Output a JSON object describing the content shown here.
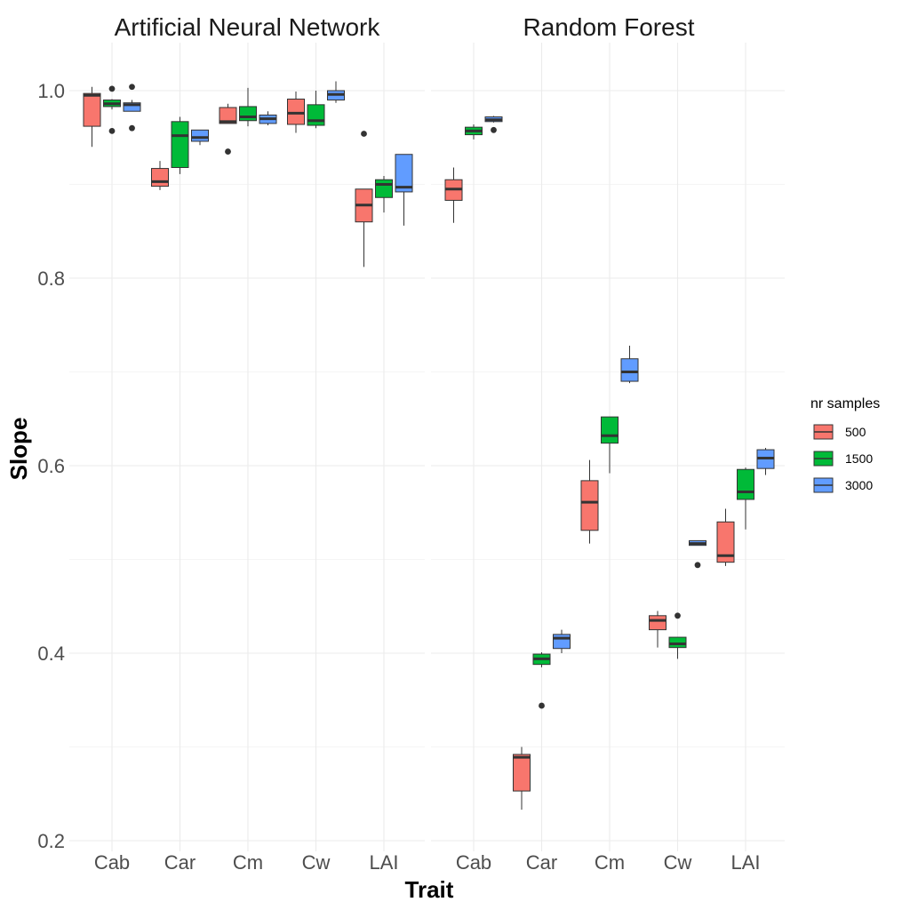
{
  "chart_data": {
    "type": "boxplot",
    "panels": [
      "Artificial Neural Network",
      "Random Forest"
    ],
    "categories": [
      "Cab",
      "Car",
      "Cm",
      "Cw",
      "LAI"
    ],
    "xlabel": "Trait",
    "ylabel": "Slope",
    "ylim": [
      0.2,
      1.05
    ],
    "yticks": [
      "0.2",
      "0.4",
      "0.6",
      "0.8",
      "1.0"
    ],
    "legend": {
      "title": "nr samples",
      "position": "right",
      "entries": [
        "500",
        "1500",
        "3000"
      ],
      "colors": [
        "#F8766D",
        "#00BA38",
        "#619CFF"
      ]
    },
    "series": [
      {
        "name": "500",
        "panels": [
          [
            {
              "min": 0.94,
              "q1": 0.962,
              "median": 0.995,
              "q3": 0.997,
              "max": 1.004,
              "outliers": []
            },
            {
              "min": 0.894,
              "q1": 0.898,
              "median": 0.903,
              "q3": 0.917,
              "max": 0.925,
              "outliers": []
            },
            {
              "min": 0.965,
              "q1": 0.965,
              "median": 0.967,
              "q3": 0.982,
              "max": 0.986,
              "outliers": [
                0.935
              ]
            },
            {
              "min": 0.955,
              "q1": 0.964,
              "median": 0.976,
              "q3": 0.991,
              "max": 0.999,
              "outliers": []
            },
            {
              "min": 0.812,
              "q1": 0.86,
              "median": 0.878,
              "q3": 0.895,
              "max": 0.895,
              "outliers": [
                0.954
              ]
            }
          ],
          [
            {
              "min": 0.859,
              "q1": 0.883,
              "median": 0.895,
              "q3": 0.905,
              "max": 0.918,
              "outliers": []
            },
            {
              "min": 0.233,
              "q1": 0.253,
              "median": 0.289,
              "q3": 0.292,
              "max": 0.3,
              "outliers": []
            },
            {
              "min": 0.517,
              "q1": 0.531,
              "median": 0.561,
              "q3": 0.584,
              "max": 0.606,
              "outliers": []
            },
            {
              "min": 0.406,
              "q1": 0.425,
              "median": 0.435,
              "q3": 0.44,
              "max": 0.445,
              "outliers": []
            },
            {
              "min": 0.493,
              "q1": 0.497,
              "median": 0.504,
              "q3": 0.54,
              "max": 0.554,
              "outliers": []
            }
          ]
        ]
      },
      {
        "name": "1500",
        "panels": [
          [
            {
              "min": 0.98,
              "q1": 0.983,
              "median": 0.986,
              "q3": 0.99,
              "max": 0.991,
              "outliers": [
                0.957,
                1.002
              ]
            },
            {
              "min": 0.911,
              "q1": 0.918,
              "median": 0.952,
              "q3": 0.967,
              "max": 0.972,
              "outliers": []
            },
            {
              "min": 0.962,
              "q1": 0.968,
              "median": 0.972,
              "q3": 0.983,
              "max": 1.003,
              "outliers": []
            },
            {
              "min": 0.96,
              "q1": 0.963,
              "median": 0.968,
              "q3": 0.985,
              "max": 1.0,
              "outliers": []
            },
            {
              "min": 0.87,
              "q1": 0.886,
              "median": 0.9,
              "q3": 0.905,
              "max": 0.909,
              "outliers": []
            }
          ],
          [
            {
              "min": 0.948,
              "q1": 0.953,
              "median": 0.957,
              "q3": 0.961,
              "max": 0.964,
              "outliers": []
            },
            {
              "min": 0.385,
              "q1": 0.388,
              "median": 0.394,
              "q3": 0.399,
              "max": 0.401,
              "outliers": [
                0.344
              ]
            },
            {
              "min": 0.592,
              "q1": 0.624,
              "median": 0.632,
              "q3": 0.652,
              "max": 0.652,
              "outliers": []
            },
            {
              "min": 0.394,
              "q1": 0.406,
              "median": 0.41,
              "q3": 0.417,
              "max": 0.417,
              "outliers": [
                0.44
              ]
            },
            {
              "min": 0.532,
              "q1": 0.564,
              "median": 0.572,
              "q3": 0.596,
              "max": 0.598,
              "outliers": []
            }
          ]
        ]
      },
      {
        "name": "3000",
        "panels": [
          [
            {
              "min": 0.978,
              "q1": 0.978,
              "median": 0.985,
              "q3": 0.987,
              "max": 0.99,
              "outliers": [
                0.96,
                1.004
              ]
            },
            {
              "min": 0.942,
              "q1": 0.946,
              "median": 0.95,
              "q3": 0.958,
              "max": 0.958,
              "outliers": []
            },
            {
              "min": 0.963,
              "q1": 0.965,
              "median": 0.97,
              "q3": 0.974,
              "max": 0.978,
              "outliers": []
            },
            {
              "min": 0.987,
              "q1": 0.99,
              "median": 0.996,
              "q3": 1.0,
              "max": 1.01,
              "outliers": []
            },
            {
              "min": 0.856,
              "q1": 0.892,
              "median": 0.897,
              "q3": 0.932,
              "max": 0.932,
              "outliers": []
            }
          ],
          [
            {
              "min": 0.966,
              "q1": 0.967,
              "median": 0.969,
              "q3": 0.972,
              "max": 0.973,
              "outliers": [
                0.958
              ]
            },
            {
              "min": 0.4,
              "q1": 0.405,
              "median": 0.416,
              "q3": 0.42,
              "max": 0.425,
              "outliers": []
            },
            {
              "min": 0.688,
              "q1": 0.69,
              "median": 0.7,
              "q3": 0.714,
              "max": 0.728,
              "outliers": []
            },
            {
              "min": 0.515,
              "q1": 0.515,
              "median": 0.517,
              "q3": 0.52,
              "max": 0.52,
              "outliers": [
                0.494
              ]
            },
            {
              "min": 0.59,
              "q1": 0.597,
              "median": 0.608,
              "q3": 0.617,
              "max": 0.619,
              "outliers": []
            }
          ]
        ]
      }
    ]
  }
}
